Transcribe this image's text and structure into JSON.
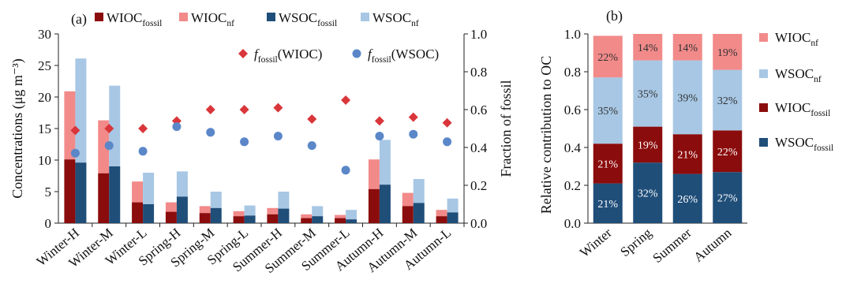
{
  "colors": {
    "wioc_fossil": "#8b0c0c",
    "wioc_nf": "#f28a8a",
    "wsoc_fossil": "#1f4e79",
    "wsoc_nf": "#a7c7e4",
    "diamond": "#d9363b",
    "circle": "#5b87c9"
  },
  "chart_data": [
    {
      "type": "bar",
      "panel_label": "(a)",
      "categories": [
        "Winter-H",
        "Winter-M",
        "Winter-L",
        "Spring-H",
        "Spring-M",
        "Spring-L",
        "Summer-H",
        "Summer-M",
        "Summer-L",
        "Autumn-H",
        "Autumn-M",
        "Autumn-L"
      ],
      "ylabel": "Concentrations (μg m⁻³)",
      "y2label": "Fraction of fossil",
      "ylim": [
        0,
        30
      ],
      "yticks": [
        0,
        5,
        10,
        15,
        20,
        25,
        30
      ],
      "y2lim": [
        0,
        1.0
      ],
      "y2ticks": [
        "0.0",
        "0.2",
        "0.4",
        "0.6",
        "0.8",
        "1.0"
      ],
      "stacked_series": [
        {
          "name": "WIOC",
          "sub": "fossil",
          "fossil": [
            10.1,
            7.9,
            3.3,
            1.8,
            1.6,
            1.1,
            1.4,
            0.8,
            0.8,
            5.4,
            2.7,
            1.1
          ],
          "total": [
            20.9,
            16.3,
            6.6,
            3.3,
            2.7,
            1.9,
            2.4,
            1.4,
            1.3,
            10.1,
            4.8,
            2.1
          ]
        },
        {
          "name": "WSOC",
          "sub": "fossil",
          "fossil": [
            9.6,
            9.0,
            3.0,
            4.2,
            2.4,
            1.2,
            2.3,
            1.1,
            0.6,
            6.1,
            3.2,
            1.7
          ],
          "total": [
            26.1,
            21.8,
            8.0,
            8.2,
            5.0,
            2.8,
            5.0,
            2.7,
            2.1,
            13.2,
            7.0,
            3.9
          ]
        }
      ],
      "legend": [
        {
          "label": "WIOC",
          "sub": "fossil",
          "color_key": "wioc_fossil"
        },
        {
          "label": "WIOC",
          "sub": "nf",
          "color_key": "wioc_nf"
        },
        {
          "label": "WSOC",
          "sub": "fossil",
          "color_key": "wsoc_fossil"
        },
        {
          "label": "WSOC",
          "sub": "nf",
          "color_key": "wsoc_nf"
        }
      ],
      "scatter_series": [
        {
          "name": "f_fossil(WIOC)",
          "label_italic": "f",
          "label_sub": "fossil",
          "label_rest": "(WIOC)",
          "marker": "diamond",
          "values": [
            0.49,
            0.5,
            0.5,
            0.54,
            0.6,
            0.6,
            0.61,
            0.55,
            0.65,
            0.54,
            0.56,
            0.53
          ]
        },
        {
          "name": "f_fossil(WSOC)",
          "label_italic": "f",
          "label_sub": "fossil",
          "label_rest": "(WSOC)",
          "marker": "circle",
          "values": [
            0.37,
            0.41,
            0.38,
            0.51,
            0.48,
            0.43,
            0.46,
            0.41,
            0.28,
            0.46,
            0.47,
            0.43
          ]
        }
      ]
    },
    {
      "type": "bar",
      "panel_label": "(b)",
      "categories": [
        "Winter",
        "Spring",
        "Summer",
        "Autumn"
      ],
      "ylabel": "Relative contribution to OC",
      "ylim": [
        0,
        1.0
      ],
      "yticks": [
        "0.0",
        "0.2",
        "0.4",
        "0.6",
        "0.8",
        "1.0"
      ],
      "stack_order": [
        "WSOC_fossil",
        "WIOC_fossil",
        "WSOC_nf",
        "WIOC_nf"
      ],
      "series": [
        {
          "name": "WSOC_fossil",
          "values": [
            0.21,
            0.32,
            0.26,
            0.27
          ],
          "labels": [
            "21%",
            "32%",
            "26%",
            "27%"
          ],
          "color_key": "wsoc_fossil"
        },
        {
          "name": "WIOC_fossil",
          "values": [
            0.21,
            0.19,
            0.21,
            0.22
          ],
          "labels": [
            "21%",
            "19%",
            "21%",
            "22%"
          ],
          "color_key": "wioc_fossil"
        },
        {
          "name": "WSOC_nf",
          "values": [
            0.35,
            0.35,
            0.39,
            0.32
          ],
          "labels": [
            "35%",
            "35%",
            "39%",
            "32%"
          ],
          "color_key": "wsoc_nf"
        },
        {
          "name": "WIOC_nf",
          "values": [
            0.22,
            0.14,
            0.14,
            0.19
          ],
          "labels": [
            "22%",
            "14%",
            "14%",
            "19%"
          ],
          "color_key": "wioc_nf"
        }
      ],
      "legend": [
        {
          "label": "WIOC",
          "sub": "nf",
          "color_key": "wioc_nf"
        },
        {
          "label": "WSOC",
          "sub": "nf",
          "color_key": "wsoc_nf"
        },
        {
          "label": "WIOC",
          "sub": "fossil",
          "color_key": "wioc_fossil"
        },
        {
          "label": "WSOC",
          "sub": "fossil",
          "color_key": "wsoc_fossil"
        }
      ]
    }
  ]
}
